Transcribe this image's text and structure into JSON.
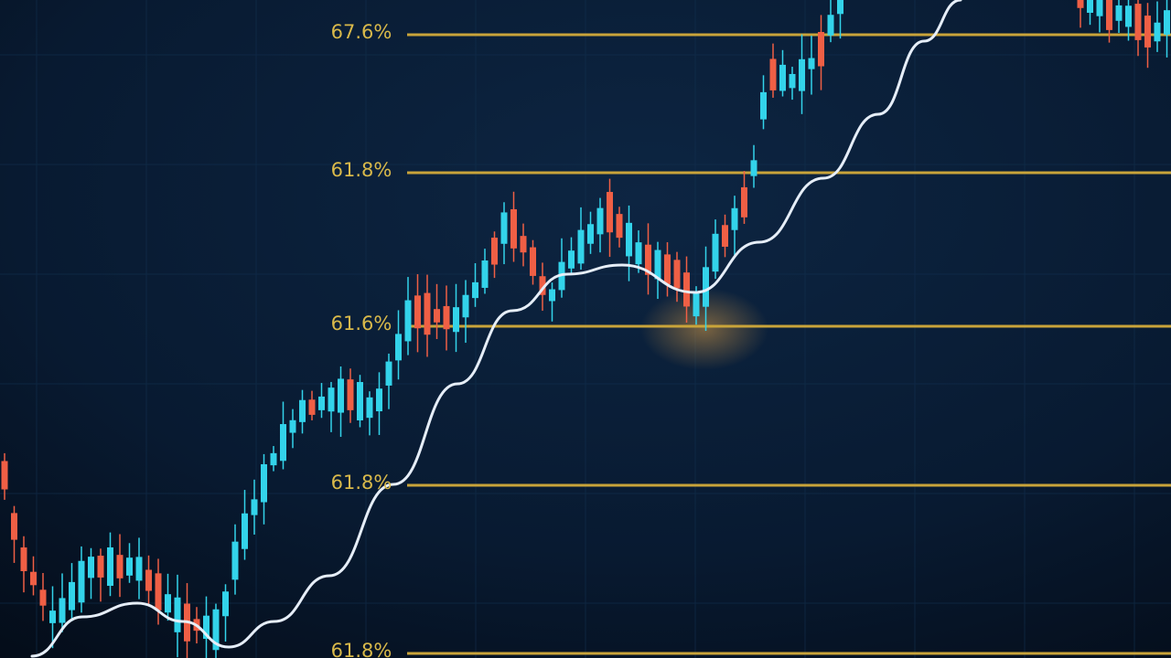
{
  "level_labels": [
    "67.6%",
    "61.8%",
    "61.6%",
    "61.8%",
    "61.8%"
  ]
}
